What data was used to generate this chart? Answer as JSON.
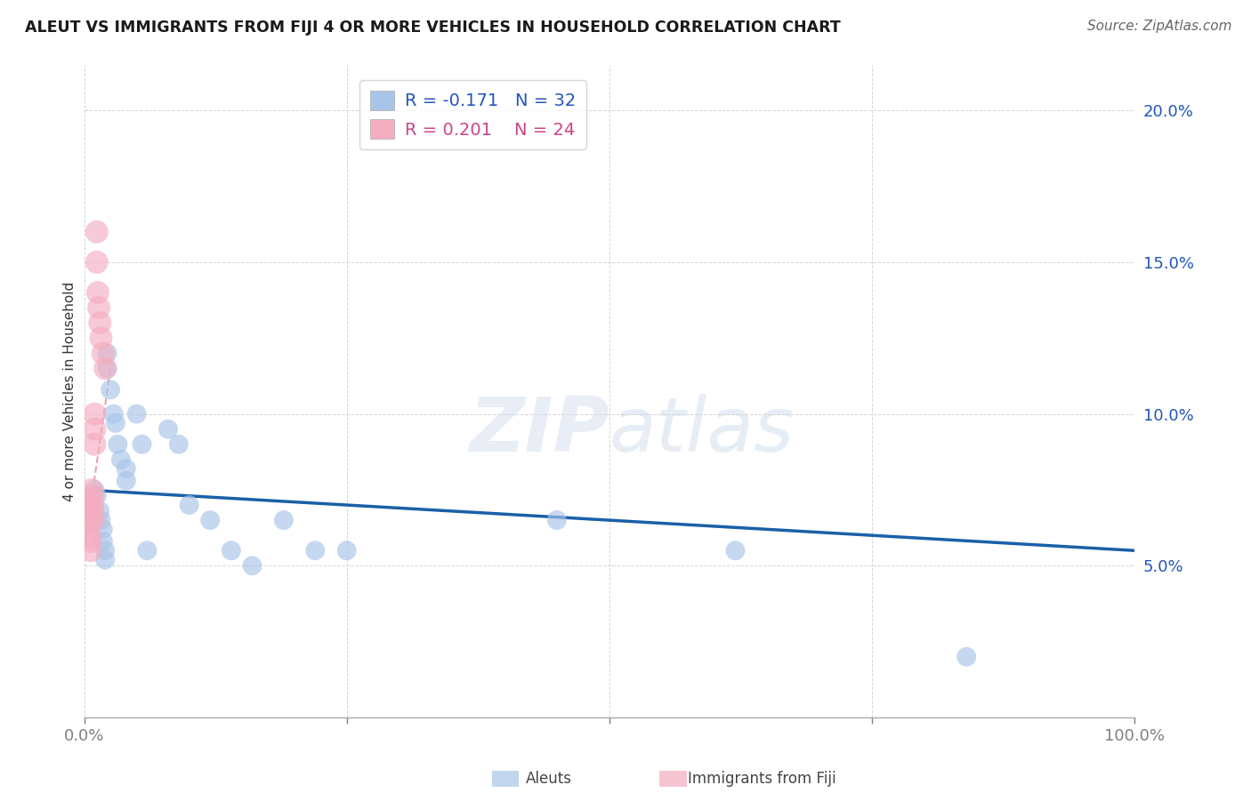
{
  "title": "ALEUT VS IMMIGRANTS FROM FIJI 4 OR MORE VEHICLES IN HOUSEHOLD CORRELATION CHART",
  "source": "Source: ZipAtlas.com",
  "ylabel": "4 or more Vehicles in Household",
  "xlim": [
    0.0,
    1.0
  ],
  "ylim": [
    0.0,
    0.215
  ],
  "xtick_vals": [
    0.0,
    0.25,
    0.5,
    0.75,
    1.0
  ],
  "xtick_labels": [
    "0.0%",
    "",
    "",
    "",
    "100.0%"
  ],
  "ytick_vals": [
    0.05,
    0.1,
    0.15,
    0.2
  ],
  "ytick_labels": [
    "5.0%",
    "10.0%",
    "15.0%",
    "20.0%"
  ],
  "aleut_color": "#a8c4e8",
  "fiji_color": "#f5adc0",
  "aleut_line_color": "#1a5fa8",
  "fiji_line_color": "#e08090",
  "r_aleut": -0.171,
  "n_aleut": 32,
  "r_fiji": 0.201,
  "n_fiji": 24,
  "aleut_x": [
    0.01,
    0.012,
    0.015,
    0.016,
    0.018,
    0.018,
    0.02,
    0.02,
    0.022,
    0.022,
    0.025,
    0.028,
    0.03,
    0.032,
    0.035,
    0.04,
    0.04,
    0.05,
    0.055,
    0.06,
    0.08,
    0.09,
    0.1,
    0.12,
    0.14,
    0.16,
    0.19,
    0.22,
    0.25,
    0.45,
    0.62,
    0.84
  ],
  "aleut_y": [
    0.075,
    0.073,
    0.068,
    0.065,
    0.062,
    0.058,
    0.055,
    0.052,
    0.12,
    0.115,
    0.108,
    0.1,
    0.097,
    0.09,
    0.085,
    0.082,
    0.078,
    0.1,
    0.09,
    0.055,
    0.095,
    0.09,
    0.07,
    0.065,
    0.055,
    0.05,
    0.065,
    0.055,
    0.055,
    0.065,
    0.055,
    0.02
  ],
  "fiji_x": [
    0.002,
    0.003,
    0.003,
    0.004,
    0.005,
    0.005,
    0.006,
    0.006,
    0.007,
    0.008,
    0.008,
    0.008,
    0.009,
    0.01,
    0.01,
    0.01,
    0.012,
    0.012,
    0.013,
    0.014,
    0.015,
    0.016,
    0.018,
    0.02
  ],
  "fiji_y": [
    0.07,
    0.072,
    0.068,
    0.065,
    0.063,
    0.06,
    0.058,
    0.055,
    0.075,
    0.073,
    0.07,
    0.068,
    0.065,
    0.1,
    0.095,
    0.09,
    0.16,
    0.15,
    0.14,
    0.135,
    0.13,
    0.125,
    0.12,
    0.115
  ],
  "aleut_trendline_x": [
    0.0,
    1.0
  ],
  "aleut_trendline_y": [
    0.075,
    0.055
  ],
  "fiji_trendline_x": [
    0.0,
    0.025
  ],
  "fiji_trendline_y": [
    0.055,
    0.115
  ]
}
